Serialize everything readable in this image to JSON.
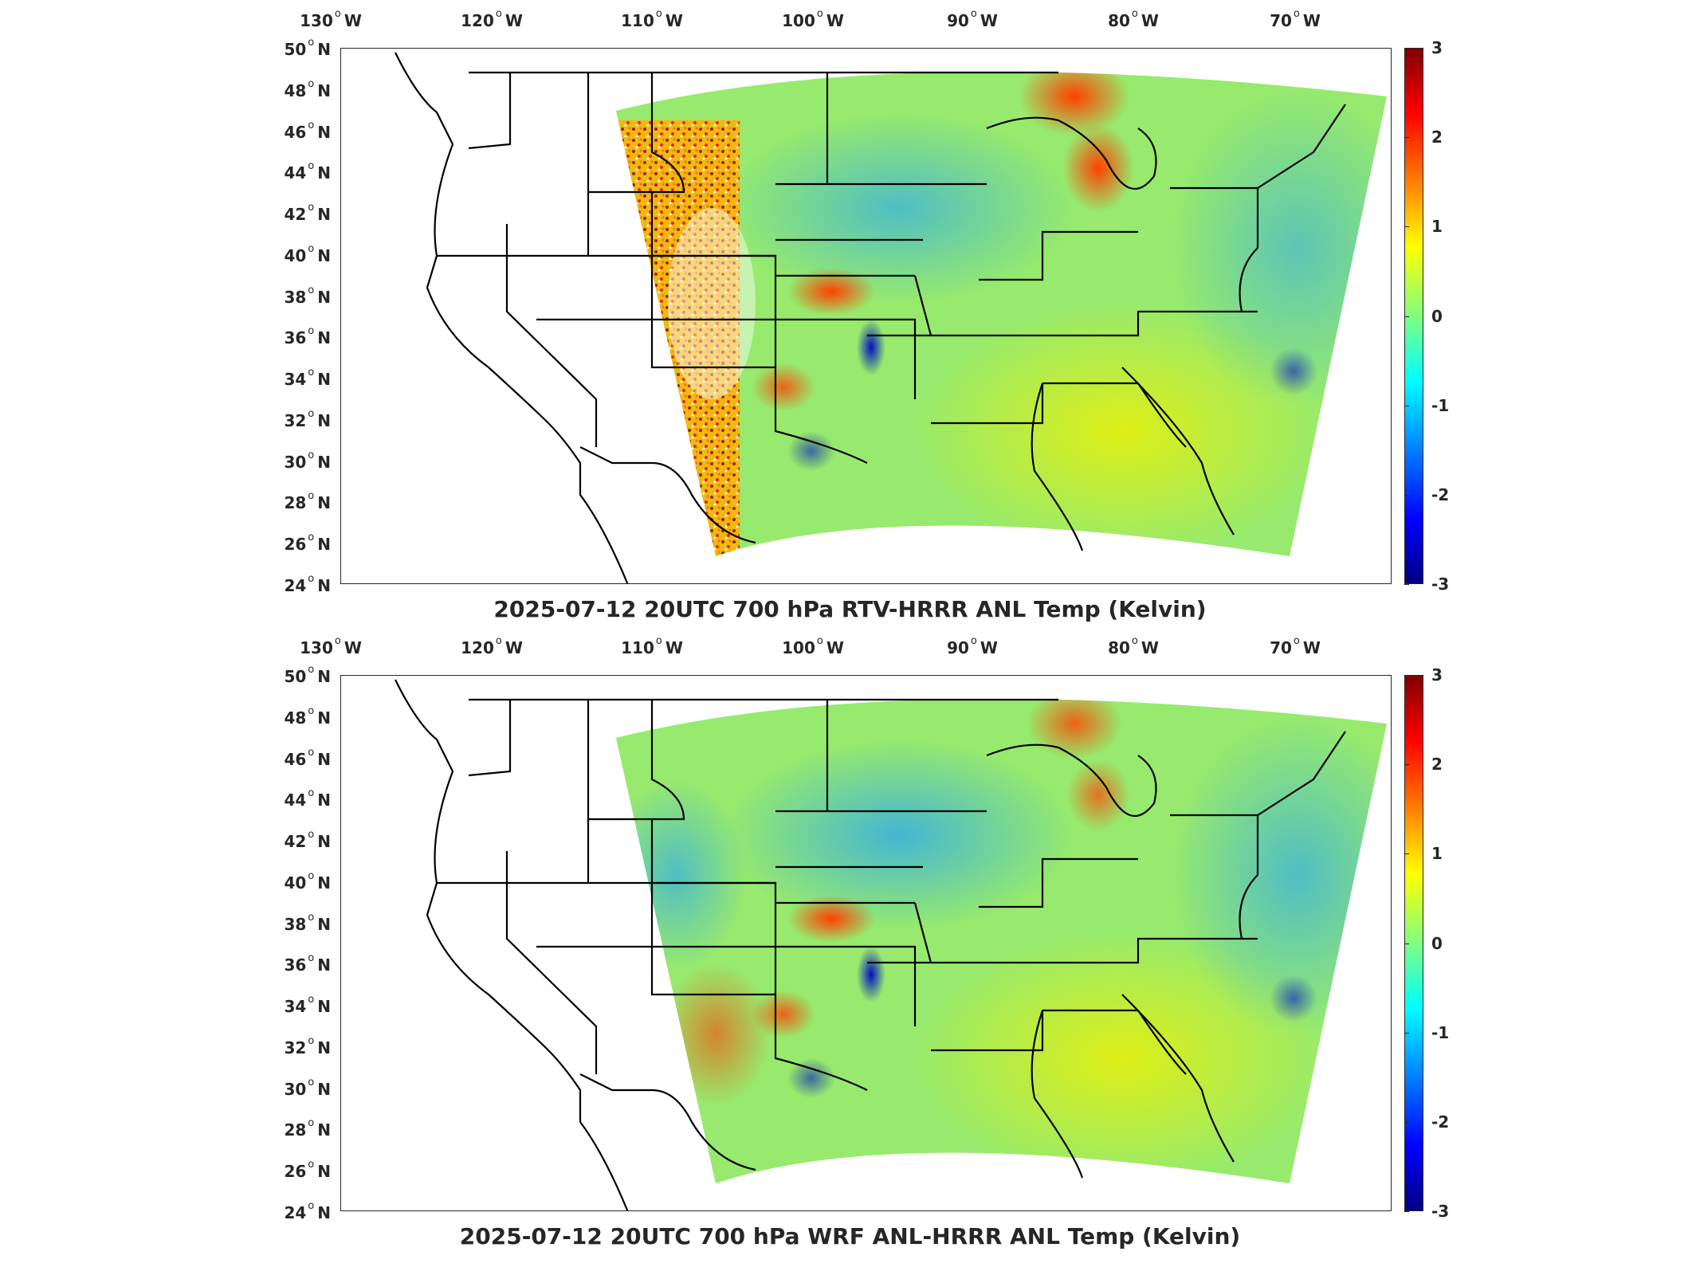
{
  "lon_labels": [
    "130",
    "120",
    "110",
    "100",
    "90",
    "80",
    "70"
  ],
  "lon_suffix": "W",
  "lat_labels": [
    "50",
    "48",
    "46",
    "44",
    "42",
    "40",
    "38",
    "36",
    "34",
    "32",
    "30",
    "28",
    "26",
    "24"
  ],
  "lat_suffix": "N",
  "colorbar_ticks": [
    "3",
    "2",
    "1",
    "0",
    "-1",
    "-2",
    "-3"
  ],
  "panels": [
    {
      "title": "2025-07-12 20UTC 700 hPa RTV-HRRR ANL Temp (Kelvin)"
    },
    {
      "title": "2025-07-12 20UTC 700 hPa WRF ANL-HRRR ANL Temp (Kelvin)"
    }
  ],
  "colormap": "jet",
  "color_range": [
    -3,
    3
  ]
}
